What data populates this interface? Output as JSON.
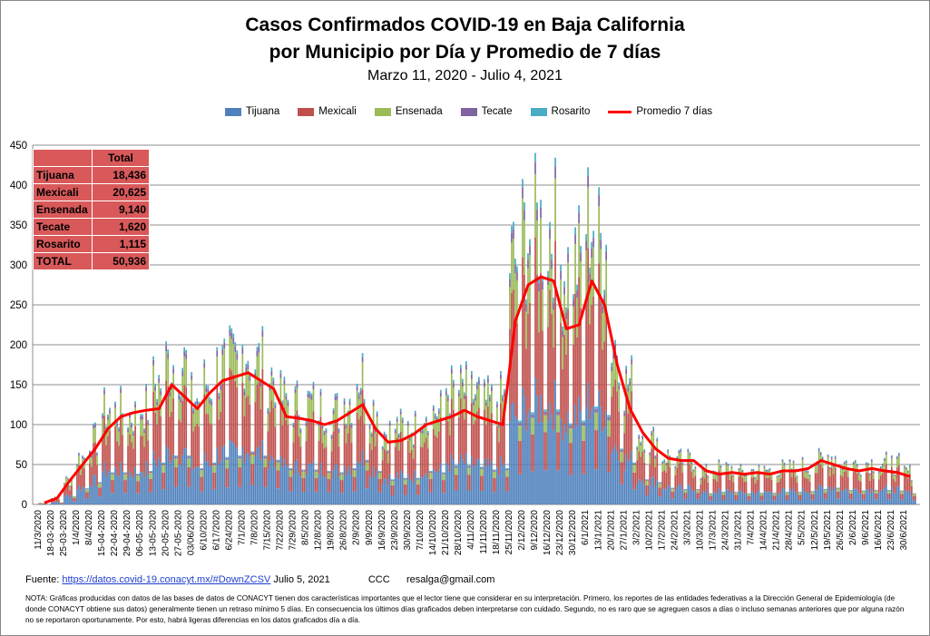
{
  "title": {
    "line1": "Casos Confirmados COVID-19 en Baja California",
    "line2": "por Municipio por Día y Promedio de 7 días",
    "line3": "Marzo 11, 2020  - Julio 4, 2021"
  },
  "legend": [
    {
      "label": "Tijuana",
      "color": "#4f81bd"
    },
    {
      "label": "Mexicali",
      "color": "#c0504d"
    },
    {
      "label": "Ensenada",
      "color": "#9bbb59"
    },
    {
      "label": "Tecate",
      "color": "#8064a2"
    },
    {
      "label": "Rosarito",
      "color": "#4bacc6"
    },
    {
      "label": "Promedio 7 días",
      "color": "#ff0000"
    }
  ],
  "totals_table": {
    "header": "Total",
    "rows": [
      {
        "label": "Tijuana",
        "value": "18,436"
      },
      {
        "label": "Mexicali",
        "value": "20,625"
      },
      {
        "label": "Ensenada",
        "value": "9,140"
      },
      {
        "label": "Tecate",
        "value": "1,620"
      },
      {
        "label": "Rosarito",
        "value": "1,115"
      },
      {
        "label": "TOTAL",
        "value": "50,936"
      }
    ]
  },
  "footer": {
    "source_label": "Fuente:",
    "source_link": "https://datos.covid-19.conacyt.mx/#DownZCSV",
    "source_date": "Julio 5, 2021",
    "credit": "CCC      resalga@gmail.com",
    "note": "NOTA: Gráficas producidas con datos de las bases de datos de CONACYT tienen dos características importantes que el lector tiene que considerar en su interpretación. Primero, los reportes de las entidades federativas a la Dirección General de Epidemiología (de donde CONACYT obtiene sus datos) generalmente tienen un retraso mínimo 5 días. En consecuencia los últimos días graficados deben interpretarse con cuidado. Segundo, no es raro que se agreguen casos a días o incluso semanas anteriores que por alguna razón no se reportaron oportunamente. Por esto, habrá ligeras diferencias en los datos graficados día a día."
  },
  "chart_data": {
    "type": "bar",
    "stacked": true,
    "ylim": [
      0,
      450
    ],
    "yticks": [
      0,
      50,
      100,
      150,
      200,
      250,
      300,
      350,
      400,
      450
    ],
    "grid": true,
    "legend_position": "top",
    "x_tick_labels": [
      "11/3/2020",
      "18-03-2020",
      "25-03-2020",
      "1/4/2020",
      "8/4/2020",
      "15-04-2020",
      "22-04-2020",
      "29-04-2020",
      "06-05-2020",
      "13-05-2020",
      "20-05-2020",
      "27-05-2020",
      "03/06/2020",
      "6/10/2020",
      "6/17/2020",
      "6/24/2020",
      "7/1/2020",
      "7/8/2020",
      "7/15/2020",
      "7/22/2020",
      "7/29/2020",
      "8/5/2020",
      "12/8/2020",
      "19/8/2020",
      "26/8/2020",
      "2/9/2020",
      "9/9/2020",
      "16/9/2020",
      "23/9/2020",
      "30/9/2020",
      "7/10/2020",
      "14/10/2020",
      "21/10/2020",
      "28/10/2020",
      "4/11/2020",
      "11/11/2020",
      "18/11/2020",
      "25/11/2020",
      "2/12/2020",
      "9/12/2020",
      "16/12/2020",
      "23/12/2020",
      "30/12/2020",
      "6/1/2021",
      "13/1/2021",
      "20/1/2021",
      "27/1/2021",
      "3/2/2021",
      "10/2/2021",
      "17/2/2021",
      "24/2/2021",
      "3/3/2021",
      "10/3/2021",
      "17/3/2021",
      "24/3/2021",
      "31/3/2021",
      "7/4/2021",
      "14/4/2021",
      "21/4/2021",
      "28/4/2021",
      "5/5/2021",
      "12/5/2021",
      "19/5/2021",
      "26/5/2021",
      "2/6/2021",
      "9/6/2021",
      "16/6/2021",
      "23/6/2021",
      "30/6/2021"
    ],
    "weekly_total_levels": [
      2,
      8,
      30,
      58,
      80,
      115,
      115,
      110,
      120,
      150,
      175,
      175,
      130,
      150,
      170,
      175,
      190,
      175,
      160,
      130,
      125,
      125,
      120,
      115,
      130,
      160,
      120,
      90,
      95,
      95,
      120,
      115,
      140,
      140,
      135,
      125,
      130,
      300,
      330,
      340,
      340,
      290,
      300,
      350,
      320,
      200,
      150,
      90,
      80,
      60,
      55,
      55,
      40,
      45,
      45,
      40,
      42,
      42,
      45,
      45,
      48,
      55,
      60,
      52,
      50,
      52,
      52,
      50,
      40
    ],
    "weekly_avg_7d": [
      2,
      8,
      30,
      50,
      70,
      95,
      110,
      115,
      118,
      120,
      150,
      135,
      120,
      140,
      155,
      160,
      165,
      155,
      145,
      110,
      108,
      105,
      100,
      105,
      115,
      125,
      95,
      78,
      80,
      88,
      100,
      105,
      110,
      118,
      110,
      105,
      100,
      230,
      275,
      285,
      280,
      220,
      225,
      280,
      250,
      175,
      120,
      90,
      70,
      58,
      55,
      55,
      42,
      38,
      40,
      38,
      40,
      38,
      42,
      42,
      45,
      55,
      50,
      45,
      42,
      45,
      42,
      40,
      35
    ],
    "series_names": [
      "Tijuana",
      "Mexicali",
      "Ensenada",
      "Tecate",
      "Rosarito",
      "Promedio 7 días"
    ]
  }
}
